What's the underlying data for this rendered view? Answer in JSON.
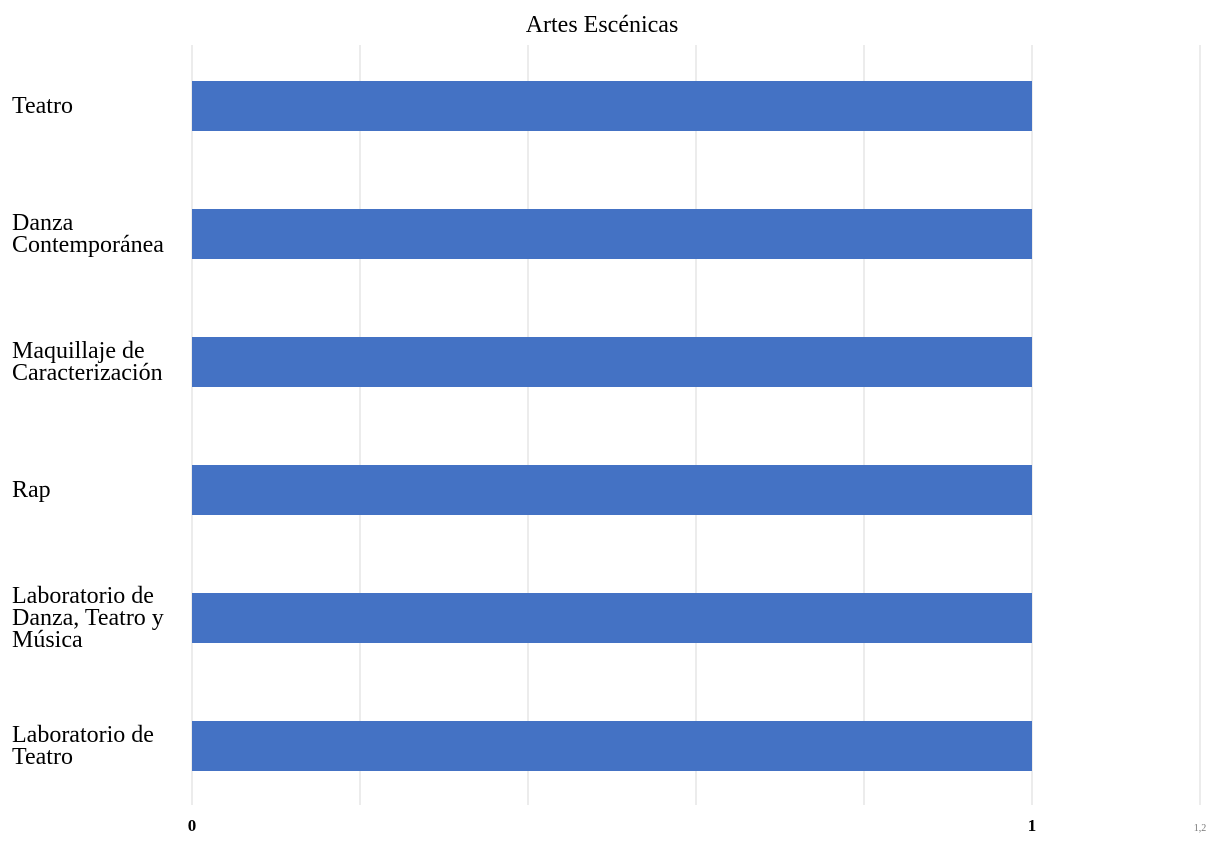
{
  "chart_data": {
    "type": "bar",
    "orientation": "horizontal",
    "title": "Artes Escénicas",
    "categories": [
      "Teatro",
      "Danza Contemporánea",
      "Maquillaje de Caracterización",
      "Rap",
      "Laboratorio de Danza, Teatro y Música",
      "Laboratorio de Teatro"
    ],
    "category_lines": [
      [
        "Teatro"
      ],
      [
        "Danza",
        "Contemporánea"
      ],
      [
        "Maquillaje de",
        "Caracterización"
      ],
      [
        "Rap"
      ],
      [
        "Laboratorio de",
        "Danza, Teatro y",
        "Música"
      ],
      [
        "Laboratorio de",
        "Teatro"
      ]
    ],
    "values": [
      1,
      1,
      1,
      1,
      1,
      1
    ],
    "xlim": [
      0,
      1.2
    ],
    "x_ticks": [
      0,
      0.2,
      0.4,
      0.6,
      0.8,
      1,
      1.2
    ],
    "x_tick_labels": [
      "0",
      "",
      "",
      "",
      "",
      "1",
      "1,2"
    ],
    "xlabel": "",
    "ylabel": "",
    "grid": "vertical",
    "legend": "none",
    "bar_color": "#4472c4",
    "grid_color": "#d9d9d9"
  }
}
